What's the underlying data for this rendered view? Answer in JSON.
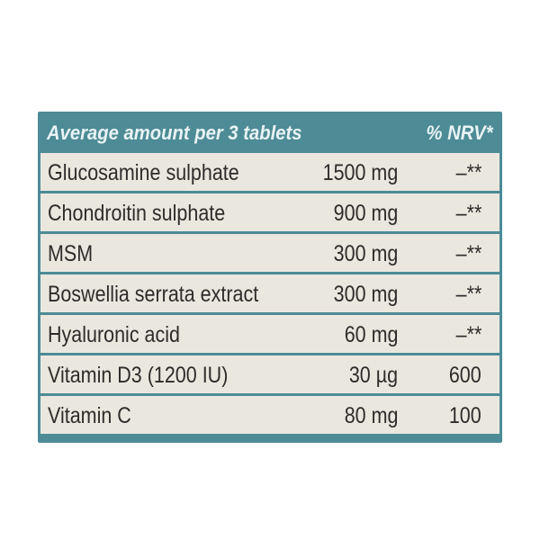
{
  "table": {
    "header": {
      "left": "Average amount per 3 tablets",
      "right": "% NRV*"
    },
    "rows": [
      {
        "name": "Glucosamine sulphate",
        "amount": "1500 mg",
        "nrv": "–**"
      },
      {
        "name": "Chondroitin sulphate",
        "amount": "900 mg",
        "nrv": "–**"
      },
      {
        "name": "MSM",
        "amount": "300 mg",
        "nrv": "–**"
      },
      {
        "name": "Boswellia serrata extract",
        "amount": "300 mg",
        "nrv": "–**"
      },
      {
        "name": "Hyaluronic acid",
        "amount": "60 mg",
        "nrv": "–**"
      },
      {
        "name": "Vitamin D3 (1200 IU)",
        "amount": "30 µg",
        "nrv": "600"
      },
      {
        "name": "Vitamin C",
        "amount": "80 mg",
        "nrv": "100"
      }
    ]
  },
  "colors": {
    "header_bg": "#4d8b96",
    "header_text": "#e9f3f5",
    "row_bg": "#eae7df",
    "row_text": "#2f2b2a"
  }
}
